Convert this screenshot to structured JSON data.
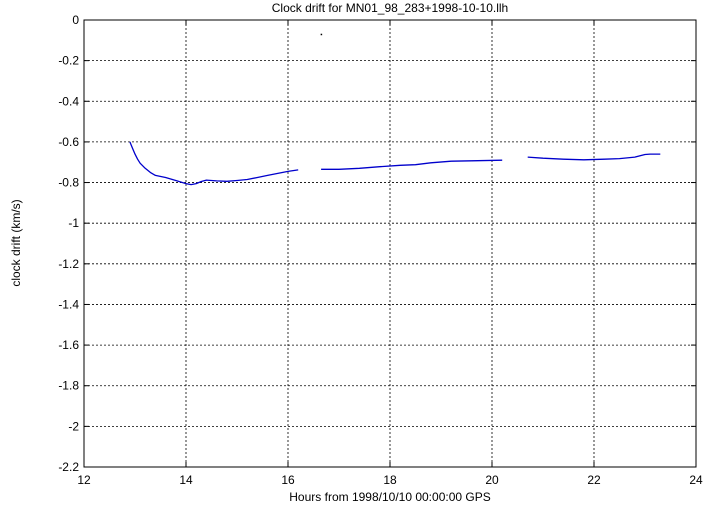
{
  "chart_data": {
    "type": "line",
    "title": "Clock drift for MN01_98_283+1998-10-10.llh",
    "xlabel": "Hours from 1998/10/10 00:00:00 GPS",
    "ylabel": "clock drift (km/s)",
    "xlim": [
      12,
      24
    ],
    "ylim": [
      -2.2,
      0
    ],
    "x_ticks": [
      12,
      14,
      16,
      18,
      20,
      22,
      24
    ],
    "x_tick_labels": [
      "12",
      "14",
      "16",
      "18",
      "20",
      "22",
      "24"
    ],
    "y_ticks": [
      0,
      -0.2,
      -0.4,
      -0.6,
      -0.8,
      -1,
      -1.2,
      -1.4,
      -1.6,
      -1.8,
      -2,
      -2.2
    ],
    "y_tick_labels": [
      "0",
      "-0.2",
      "-0.4",
      "-0.6",
      "-0.8",
      "-1",
      "-1.2",
      "-1.4",
      "-1.6",
      "-1.8",
      "-2",
      "-2.2"
    ],
    "grid": true,
    "color": "#0000cc",
    "series": [
      {
        "segments": [
          [
            [
              12.9,
              -0.6
            ],
            [
              12.95,
              -0.63
            ],
            [
              13.0,
              -0.66
            ],
            [
              13.05,
              -0.685
            ],
            [
              13.1,
              -0.705
            ],
            [
              13.2,
              -0.73
            ],
            [
              13.3,
              -0.75
            ],
            [
              13.4,
              -0.765
            ],
            [
              13.6,
              -0.775
            ],
            [
              13.8,
              -0.79
            ],
            [
              14.0,
              -0.805
            ],
            [
              14.1,
              -0.81
            ],
            [
              14.2,
              -0.805
            ],
            [
              14.3,
              -0.795
            ],
            [
              14.4,
              -0.788
            ],
            [
              14.6,
              -0.792
            ],
            [
              14.8,
              -0.794
            ],
            [
              15.0,
              -0.79
            ],
            [
              15.2,
              -0.785
            ],
            [
              15.4,
              -0.775
            ],
            [
              15.6,
              -0.765
            ],
            [
              15.8,
              -0.755
            ],
            [
              16.0,
              -0.745
            ],
            [
              16.2,
              -0.738
            ]
          ],
          [
            [
              16.65,
              -0.735
            ],
            [
              17.0,
              -0.735
            ],
            [
              17.4,
              -0.73
            ],
            [
              17.8,
              -0.722
            ],
            [
              18.2,
              -0.715
            ],
            [
              18.5,
              -0.712
            ],
            [
              18.8,
              -0.703
            ],
            [
              19.2,
              -0.695
            ],
            [
              19.6,
              -0.693
            ],
            [
              20.2,
              -0.69
            ]
          ],
          [
            [
              20.7,
              -0.675
            ],
            [
              21.0,
              -0.68
            ],
            [
              21.4,
              -0.685
            ],
            [
              21.8,
              -0.688
            ],
            [
              22.2,
              -0.685
            ],
            [
              22.5,
              -0.682
            ],
            [
              22.8,
              -0.675
            ],
            [
              23.0,
              -0.662
            ],
            [
              23.1,
              -0.66
            ],
            [
              23.3,
              -0.66
            ]
          ]
        ]
      }
    ],
    "stray_points": [
      [
        16.65,
        -0.07
      ]
    ]
  }
}
